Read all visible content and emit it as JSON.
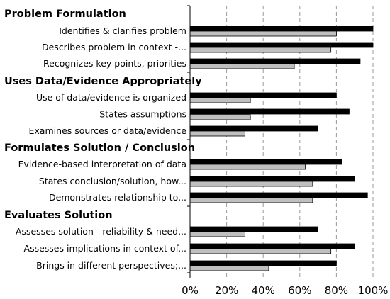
{
  "chart_data": {
    "type": "bar",
    "orientation": "horizontal",
    "xlim": [
      0,
      100
    ],
    "x_ticks": [
      "0%",
      "20%",
      "40%",
      "60%",
      "80%",
      "100%"
    ],
    "grid": "vertical-dashed",
    "series_colors": [
      "#000000",
      "#bfbfbf"
    ],
    "groups": [
      {
        "title": "Problem Formulation",
        "items": [
          {
            "label": "Identifies & clarifies problem",
            "values": [
              100,
              80
            ]
          },
          {
            "label": "Describes  problem in context -...",
            "values": [
              100,
              77
            ]
          },
          {
            "label": "Recognizes key points, priorities",
            "values": [
              93,
              57
            ]
          }
        ]
      },
      {
        "title": "Uses Data/Evidence Appropriately",
        "items": [
          {
            "label": "Use of data/evidence is organized",
            "values": [
              80,
              33
            ]
          },
          {
            "label": "States assumptions",
            "values": [
              87,
              33
            ]
          },
          {
            "label": "Examines sources or data/evidence",
            "values": [
              70,
              30
            ]
          }
        ]
      },
      {
        "title": "Formulates Solution / Conclusion",
        "items": [
          {
            "label": "Evidence-based interpretation of data",
            "values": [
              83,
              63
            ]
          },
          {
            "label": "States conclusion/solution, how...",
            "values": [
              90,
              67
            ]
          },
          {
            "label": "Demonstrates relationship to...",
            "values": [
              97,
              67
            ]
          }
        ]
      },
      {
        "title": "Evaluates Solution",
        "items": [
          {
            "label": "Assesses solution - reliability & need...",
            "values": [
              70,
              30
            ]
          },
          {
            "label": "Assesses implications in context of...",
            "values": [
              90,
              77
            ]
          },
          {
            "label": "Brings in different perspectives;...",
            "values": [
              80,
              43
            ]
          }
        ]
      }
    ]
  }
}
